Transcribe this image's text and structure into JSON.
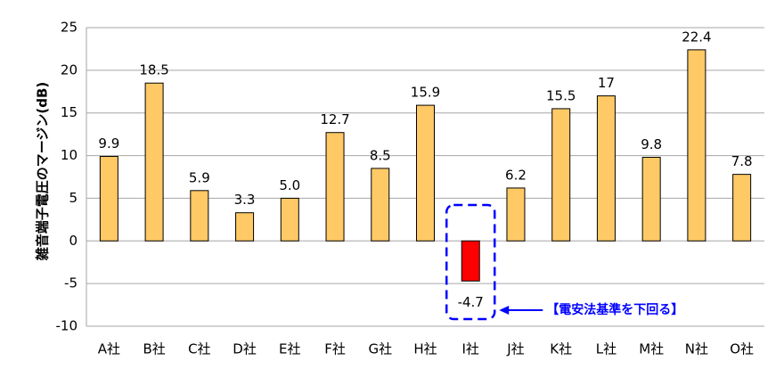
{
  "chart_data": {
    "type": "bar",
    "title": "",
    "xlabel": "",
    "ylabel": "雑音端子電圧のマージン(dB)",
    "categories": [
      "A社",
      "B社",
      "C社",
      "D社",
      "E社",
      "F社",
      "G社",
      "H社",
      "I社",
      "J社",
      "K社",
      "L社",
      "M社",
      "N社",
      "O社"
    ],
    "values": [
      9.9,
      18.5,
      5.9,
      3.3,
      5.0,
      12.7,
      8.5,
      15.9,
      -4.7,
      6.2,
      15.5,
      17,
      9.8,
      22.4,
      7.8
    ],
    "value_labels": [
      "9.9",
      "18.5",
      "5.9",
      "3.3",
      "5.0",
      "12.7",
      "8.5",
      "15.9",
      "-4.7",
      "6.2",
      "15.5",
      "17",
      "9.8",
      "22.4",
      "7.8"
    ],
    "ylim": [
      -10,
      25
    ],
    "yticks": [
      25,
      20,
      15,
      10,
      5,
      0,
      -5,
      -10
    ],
    "grid": true,
    "legend": "none",
    "colors": {
      "bar": "#FFC966",
      "bar_negative": "#FF0000",
      "bar_edge": "#000000",
      "grid": "#A6A6A6",
      "callout": "#0000FF"
    },
    "annotation": {
      "text": "【電安法基準を下回る】",
      "target_category": "I社"
    }
  }
}
